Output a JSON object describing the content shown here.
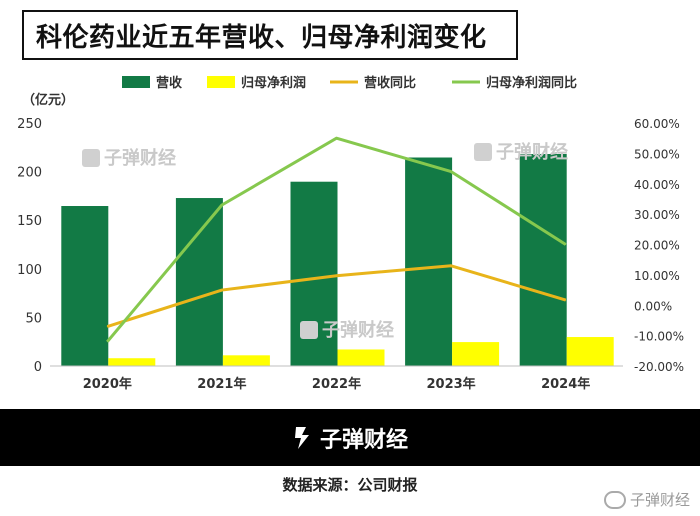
{
  "title": "科伦药业近五年营收、归母净利润变化",
  "watermark_text": "子弹财经",
  "footer": {
    "brand": "子弹财经",
    "source": "数据来源：公司财报",
    "corner_watermark": "子弹财经"
  },
  "chart_data": {
    "type": "bar",
    "categories": [
      "2020年",
      "2021年",
      "2022年",
      "2023年",
      "2024年"
    ],
    "unit_label": "（亿元）",
    "series": [
      {
        "name": "营收",
        "kind": "bar",
        "axis": "left",
        "color": "#127a45",
        "values": [
          164.6,
          172.8,
          189.6,
          214.5,
          218.1
        ]
      },
      {
        "name": "归母净利润",
        "kind": "bar",
        "axis": "left",
        "color": "#ffff00",
        "values": [
          8.0,
          11.0,
          17.0,
          24.6,
          29.8
        ]
      },
      {
        "name": "营收同比",
        "kind": "line",
        "axis": "right",
        "color": "#e8b41a",
        "values": [
          -7.0,
          5.0,
          9.7,
          13.0,
          1.7
        ]
      },
      {
        "name": "归母净利润同比",
        "kind": "line",
        "axis": "right",
        "color": "#86c84e",
        "values": [
          -12.0,
          33.0,
          55.0,
          44.0,
          20.0
        ]
      }
    ],
    "y_left": {
      "min": 0,
      "max": 250,
      "ticks": [
        "0",
        "50",
        "100",
        "150",
        "200",
        "250"
      ]
    },
    "y_right": {
      "min": -20,
      "max": 60,
      "ticks": [
        "-20.00%",
        "-10.00%",
        "0.00%",
        "10.00%",
        "20.00%",
        "30.00%",
        "40.00%",
        "50.00%",
        "60.00%"
      ]
    },
    "legend": "top",
    "grid": false
  }
}
